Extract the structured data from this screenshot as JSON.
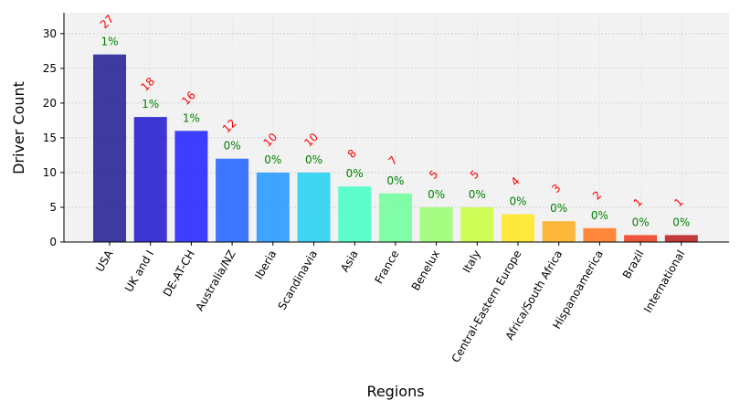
{
  "chart_data": {
    "type": "bar",
    "xlabel": "Regions",
    "ylabel": "Driver Count",
    "ylim": [
      0,
      33
    ],
    "yticks": [
      0,
      5,
      10,
      15,
      20,
      25,
      30
    ],
    "grid": true,
    "categories": [
      "USA",
      "UK and I",
      "DE-AT-CH",
      "Australia/NZ",
      "Iberia",
      "Scandinavia",
      "Asia",
      "France",
      "Benelux",
      "Italy",
      "Central-Eastern Europe",
      "Africa/South Africa",
      "Hispanoamerica",
      "Brazil",
      "International"
    ],
    "values": [
      27,
      18,
      16,
      12,
      10,
      10,
      8,
      7,
      5,
      5,
      4,
      3,
      2,
      1,
      1
    ],
    "count_labels": [
      "27",
      "18",
      "16",
      "12",
      "10",
      "10",
      "8",
      "7",
      "5",
      "5",
      "4",
      "3",
      "2",
      "1",
      "1"
    ],
    "percent_labels": [
      "1%",
      "1%",
      "1%",
      "0%",
      "0%",
      "0%",
      "0%",
      "0%",
      "0%",
      "0%",
      "0%",
      "0%",
      "0%",
      "0%",
      "0%"
    ],
    "colors": [
      "#1f1b8f",
      "#1d14cf",
      "#1f1fff",
      "#1d61ff",
      "#1e96ff",
      "#21d0f2",
      "#43ffc6",
      "#6fff9a",
      "#9aff6e",
      "#c8ff3d",
      "#ffe81a",
      "#ffad1b",
      "#ff751c",
      "#ee3a1c",
      "#bb1a1a"
    ],
    "count_label_color": "#ff0000",
    "percent_label_color": "#008000",
    "plot_background": "#f2f2f2"
  }
}
